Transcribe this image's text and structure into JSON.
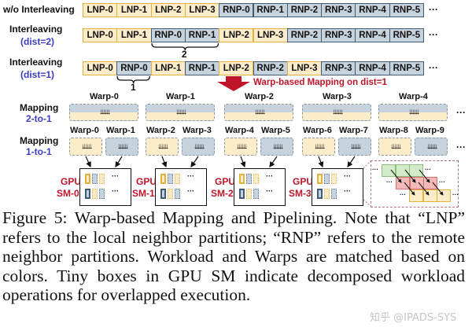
{
  "rows": [
    {
      "label": "w/o Interleaving",
      "sublabel": "",
      "cells": [
        "LNP-0",
        "LNP-1",
        "LNP-2",
        "LNP-3",
        "RNP-0",
        "RNP-1",
        "RNP-2",
        "RNP-3",
        "RNP-4",
        "RNP-5"
      ]
    },
    {
      "label": "Interleaving",
      "sublabel": "(dist=2)",
      "cells": [
        "LNP-0",
        "LNP-1",
        "RNP-0",
        "RNP-1",
        "LNP-2",
        "LNP-3",
        "RNP-2",
        "RNP-3",
        "RNP-4",
        "RNP-5"
      ],
      "brace_label": "2"
    },
    {
      "label": "Interleaving",
      "sublabel": "(dist=1)",
      "cells": [
        "LNP-0",
        "RNP-0",
        "LNP-1",
        "RNP-1",
        "LNP-2",
        "RNP-2",
        "LNP-3",
        "RNP-3",
        "RNP-4",
        "RNP-5"
      ],
      "brace_label": "1"
    }
  ],
  "ellipsis": "···",
  "arrow_text": "Warp-based Mapping on dist=1",
  "mapping_2to1": {
    "label": "Mapping",
    "sublabel": "2-to-1",
    "warps": [
      "Warp-0",
      "Warp-1",
      "Warp-2",
      "Warp-3",
      "Warp-4"
    ]
  },
  "mapping_1to1": {
    "label": "Mapping",
    "sublabel": "1-to-1",
    "warps": [
      "Warp-0",
      "Warp-1",
      "Warp-2",
      "Warp-3",
      "Warp-4",
      "Warp-5",
      "Warp-6",
      "Warp-7",
      "Warp-8",
      "Warp-9"
    ]
  },
  "sms": [
    {
      "gpu": "GPU",
      "name": "SM-0"
    },
    {
      "gpu": "GPU",
      "name": "SM-1"
    },
    {
      "gpu": "GPU",
      "name": "SM-2"
    },
    {
      "gpu": "GPU",
      "name": "SM-3"
    }
  ],
  "colors": {
    "lnp_fill": "#fdecc9",
    "lnp_border": "#e3b23c",
    "rnp_fill": "#c6d2dc",
    "rnp_border": "#3f5a72",
    "accent_red": "#c0142a",
    "accent_blue": "#3b3bc4",
    "pipeline_green": "#d3ebc9",
    "pipeline_red": "#f3b9b9"
  },
  "caption": "Figure 5: Warp-based Mapping and Pipelining. Note that “LNP” refers to the local neighbor partitions; “RNP” refers to the remote neighbor partitions. Workload and Warps are matched based on colors. Tiny boxes in GPU SM indicate decomposed workload operations for overlapped execution.",
  "watermark": "知乎 @IPADS-SYS"
}
